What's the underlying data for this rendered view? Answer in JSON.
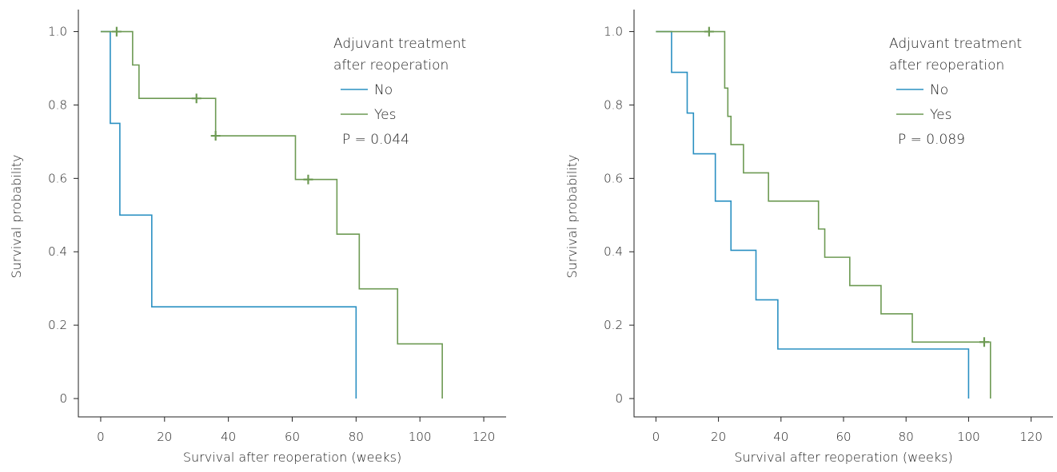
{
  "colors": {
    "no": "#2a90c2",
    "yes": "#6d9a53",
    "axis": "#222222"
  },
  "chart_data": [
    {
      "type": "line",
      "subtype": "kaplan-meier-step",
      "xlabel": "Survival after reoperation (weeks)",
      "ylabel": "Survival probability",
      "xlim": [
        -7,
        127
      ],
      "ylim": [
        -0.05,
        1.06
      ],
      "xticks": [
        0,
        20,
        40,
        60,
        80,
        100,
        120
      ],
      "yticks": [
        0,
        0.2,
        0.4,
        0.6,
        0.8,
        1.0
      ],
      "ytick_labels": [
        "0",
        "0.2",
        "0.4",
        "0.6",
        "0.8",
        "1.0"
      ],
      "legend": {
        "title_lines": [
          "Adjuvant treatment",
          "after reoperation"
        ],
        "position": "top-right",
        "entries": [
          "No",
          "Yes"
        ],
        "p_value": "P = 0.044"
      },
      "series": [
        {
          "name": "No",
          "color_key": "no",
          "steps": [
            [
              0,
              1.0
            ],
            [
              3,
              0.75
            ],
            [
              6,
              0.5
            ],
            [
              16,
              0.25
            ],
            [
              80,
              0.0
            ]
          ],
          "end_x": 80,
          "censored": []
        },
        {
          "name": "Yes",
          "color_key": "yes",
          "steps": [
            [
              0,
              1.0
            ],
            [
              10,
              0.909
            ],
            [
              12,
              0.818
            ],
            [
              36,
              0.716
            ],
            [
              61,
              0.597
            ],
            [
              74,
              0.448
            ],
            [
              81,
              0.299
            ],
            [
              93,
              0.149
            ],
            [
              107,
              0.0
            ]
          ],
          "end_x": 107,
          "censored": [
            [
              5,
              1.0
            ],
            [
              30,
              0.818
            ],
            [
              36,
              0.716
            ],
            [
              65,
              0.597
            ]
          ]
        }
      ]
    },
    {
      "type": "line",
      "subtype": "kaplan-meier-step",
      "xlabel": "Survival after reoperation (weeks)",
      "ylabel": "Survival probability",
      "xlim": [
        -7,
        127
      ],
      "ylim": [
        -0.05,
        1.06
      ],
      "xticks": [
        0,
        20,
        40,
        60,
        80,
        100,
        120
      ],
      "yticks": [
        0,
        0.2,
        0.4,
        0.6,
        0.8,
        1.0
      ],
      "ytick_labels": [
        "0",
        "0.2",
        "0.4",
        "0.6",
        "0.8",
        "1.0"
      ],
      "legend": {
        "title_lines": [
          "Adjuvant treatment",
          "after reoperation"
        ],
        "position": "top-right",
        "entries": [
          "No",
          "Yes"
        ],
        "p_value": "P = 0.089"
      },
      "series": [
        {
          "name": "No",
          "color_key": "no",
          "steps": [
            [
              0,
              1.0
            ],
            [
              5,
              0.889
            ],
            [
              10,
              0.778
            ],
            [
              12,
              0.667
            ],
            [
              19,
              0.538
            ],
            [
              24,
              0.404
            ],
            [
              32,
              0.269
            ],
            [
              39,
              0.135
            ],
            [
              100,
              0.0
            ]
          ],
          "end_x": 100,
          "censored": []
        },
        {
          "name": "Yes",
          "color_key": "yes",
          "steps": [
            [
              0,
              1.0
            ],
            [
              22,
              0.846
            ],
            [
              23,
              0.769
            ],
            [
              24,
              0.692
            ],
            [
              28,
              0.615
            ],
            [
              36,
              0.538
            ],
            [
              52,
              0.462
            ],
            [
              54,
              0.385
            ],
            [
              62,
              0.308
            ],
            [
              72,
              0.231
            ],
            [
              82,
              0.154
            ],
            [
              107,
              0.0
            ]
          ],
          "end_x": 107,
          "censored": [
            [
              17,
              1.0
            ],
            [
              105,
              0.154
            ]
          ]
        }
      ]
    }
  ]
}
